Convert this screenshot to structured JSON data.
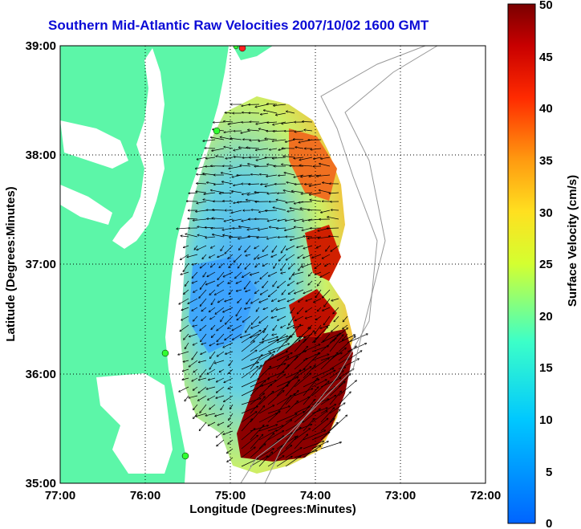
{
  "title": "Southern Mid-Atlantic Raw Velocities 2007/10/02 1600 GMT",
  "map": {
    "xlabel": "Longitude (Degrees:Minutes)",
    "ylabel": "Latitude (Degrees:Minutes)",
    "lon_ticks": [
      "77:00",
      "76:00",
      "75:00",
      "74:00",
      "73:00",
      "72:00"
    ],
    "lat_ticks": [
      "39:00",
      "38:00",
      "37:00",
      "36:00",
      "35:00"
    ],
    "lon_range": [
      -77,
      -72
    ],
    "lat_range": [
      35,
      39
    ],
    "land_color": "#5cf6a8",
    "water_color": "#ffffff"
  },
  "colorbar": {
    "label": "Surface Velocity (cm/s)",
    "ticks": [
      "0",
      "5",
      "10",
      "15",
      "20",
      "25",
      "30",
      "35",
      "40",
      "45",
      "50"
    ],
    "range": [
      0,
      50
    ]
  }
}
